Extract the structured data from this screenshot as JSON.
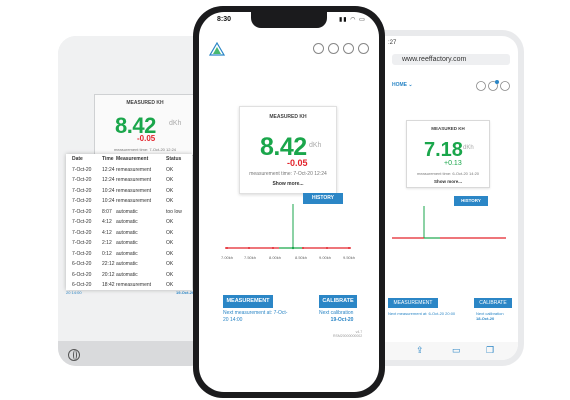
{
  "left_tablet": {
    "card_title": "MEASURED KH",
    "value": "8.42",
    "unit": "dKh",
    "delta": "-0.05",
    "measurement_time": "measurement time: 7-Oct-20 12:24",
    "table": {
      "headers": [
        "Date",
        "Time",
        "Measurement",
        "Status"
      ],
      "rows": [
        [
          "7-Oct-20",
          "12:24",
          "remeasurement",
          "OK"
        ],
        [
          "7-Oct-20",
          "12:24",
          "remeasurement",
          "OK"
        ],
        [
          "7-Oct-20",
          "10:24",
          "remeasurement",
          "OK"
        ],
        [
          "7-Oct-20",
          "10:24",
          "remeasurement",
          "OK"
        ],
        [
          "7-Oct-20",
          "8:07",
          "automatic",
          "too low"
        ],
        [
          "7-Oct-20",
          "4:12",
          "automatic",
          "OK"
        ],
        [
          "7-Oct-20",
          "4:12",
          "automatic",
          "OK"
        ],
        [
          "7-Oct-20",
          "2:12",
          "automatic",
          "OK"
        ],
        [
          "7-Oct-20",
          "0:12",
          "automatic",
          "OK"
        ],
        [
          "6-Oct-20",
          "22:12",
          "automatic",
          "OK"
        ],
        [
          "6-Oct-20",
          "20:12",
          "automatic",
          "OK"
        ],
        [
          "6-Oct-20",
          "18:42",
          "remeasurement",
          "OK"
        ]
      ]
    },
    "footer_left": "20 14:00",
    "footer_right": "19-Oct-20"
  },
  "center_phone": {
    "status_time": "8:30",
    "card_title": "MEASURED KH",
    "value": "8.42",
    "unit": "dKh",
    "delta": "-0.05",
    "measurement_time": "measurement time: 7-Oct-20 12:24",
    "show_more": "Show more...",
    "history_button": "HISTORY",
    "scale_labels": [
      "7.00kh",
      "7.50kh",
      "8.00kh",
      "8.50kh",
      "9.00kh",
      "9.50kh"
    ],
    "measurement_button": "MEASUREMENT",
    "next_measurement": "Next measurement at: 7-Oct-20 14:00",
    "calibrate_button": "CALIBRATE",
    "next_calibration_label": "Next calibration",
    "next_calibration_date": "19-Oct-20",
    "footer_version": "v4.7",
    "footer_id": "RSM20000000002",
    "colors": {
      "value_green": "#1aa64b",
      "delta_red": "#e3232b",
      "accent_blue": "#2b86c6"
    }
  },
  "right_phone": {
    "status_time": ":27",
    "url": "www.reeffactory.com",
    "nav_home": "HOME",
    "card_title": "MEASURED KH",
    "value": "7.18",
    "unit": "dKh",
    "delta": "+0.13",
    "measurement_time": "measurement time: 6-Oct-20 14:20",
    "show_more": "Show more...",
    "history_button": "HISTORY",
    "measurement_button": "MEASUREMENT",
    "next_measurement": "Next measurement at: 6-Oct-20 20:00",
    "calibrate_button": "CALIBRATE",
    "next_calibration_label": "Next calibration",
    "next_calibration_date": "18-Oct-20"
  }
}
